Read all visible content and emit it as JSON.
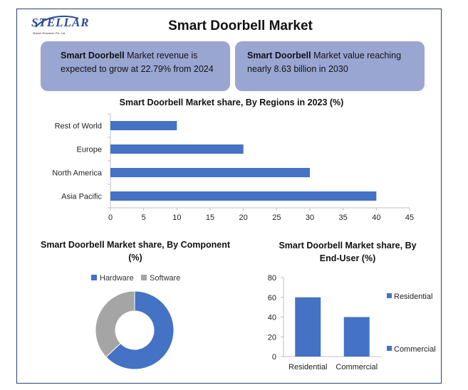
{
  "logo": {
    "text": "STELLAR",
    "subtext": "Market Research Pvt. Ltd."
  },
  "page_title": "Smart Doorbell Market",
  "cards": [
    {
      "bold": "Smart Doorbell",
      "text": " Market revenue is expected to grow at 22.79% from 2024"
    },
    {
      "bold": "Smart Doorbell",
      "text": " Market value reaching nearly 8.63 billion in 2030"
    }
  ],
  "colors": {
    "series": "#4472c4",
    "secondary": "#a5a5a5",
    "axis": "#bfbfbf",
    "card": "#9aa6d2"
  },
  "chart_data": [
    {
      "type": "bar",
      "orientation": "horizontal",
      "title": "Smart Doorbell Market share,  By Regions in 2023  (%)",
      "categories": [
        "Asia Pacific",
        "North America",
        "Europe",
        "Rest of World"
      ],
      "values": [
        40,
        30,
        20,
        10
      ],
      "xlim": [
        0,
        45
      ],
      "xticks": [
        0,
        5,
        10,
        15,
        20,
        25,
        30,
        35,
        40,
        45
      ],
      "grid": false
    },
    {
      "type": "pie",
      "donut": true,
      "title_line1": "Smart Doorbell Market share, By Component",
      "title_line2": "(%)",
      "labels": [
        "Hardware",
        "Software"
      ],
      "values": [
        63,
        37
      ],
      "colors": [
        "#4472c4",
        "#a5a5a5"
      ],
      "legend": "top"
    },
    {
      "type": "bar",
      "orientation": "vertical",
      "title_line1": "Smart Doorbell Market share, By",
      "title_line2": "End-User  (%)",
      "categories": [
        "Residential",
        "Commercial"
      ],
      "values": [
        60,
        40
      ],
      "ylim": [
        0,
        80
      ],
      "yticks": [
        0,
        20,
        40,
        60,
        80
      ],
      "legend_entries": [
        "Residential",
        "Commercial"
      ],
      "legend": "right"
    }
  ]
}
